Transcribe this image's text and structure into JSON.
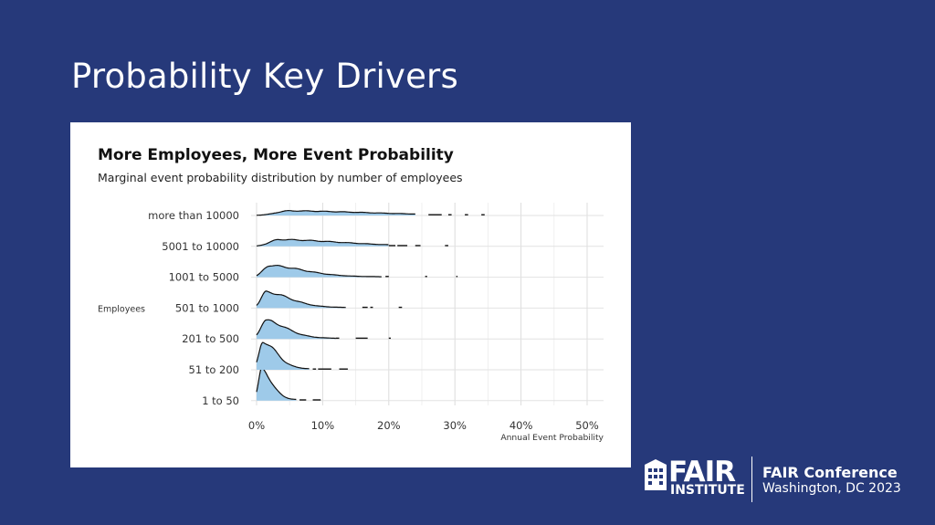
{
  "slide": {
    "title": "Probability Key Drivers"
  },
  "logo": {
    "brand": "FAIR",
    "sub": "INSTITUTE",
    "conference_name": "FAIR Conference",
    "conference_location": "Washington, DC 2023"
  },
  "chart_data": {
    "type": "ridgeline",
    "title": "More Employees, More Event Probability",
    "subtitle": "Marginal event probability distribution by number of employees",
    "ylabel": "Employees",
    "xlabel": "Annual Event Probability",
    "xlim": [
      0,
      0.5
    ],
    "xticks": [
      0,
      0.1,
      0.2,
      0.3,
      0.4,
      0.5
    ],
    "xtick_labels": [
      "0%",
      "10%",
      "20%",
      "30%",
      "40%",
      "50%"
    ],
    "grid": true,
    "fill_color": "#9ecae9",
    "line_color": "#111111",
    "series": [
      {
        "name": "1 to 50",
        "peak": 0.008,
        "spread_left": 0.005,
        "spread_right": 0.015,
        "rel_height": 1.0,
        "tail_end": 0.06,
        "ticks": [
          [
            0.065,
            0.075
          ],
          [
            0.085,
            0.097
          ]
        ]
      },
      {
        "name": "51 to 200",
        "peak": 0.01,
        "spread_left": 0.006,
        "spread_right": 0.02,
        "rel_height": 0.92,
        "tail_end": 0.08,
        "ticks": [
          [
            0.085,
            0.09
          ],
          [
            0.093,
            0.113
          ],
          [
            0.125,
            0.138
          ]
        ]
      },
      {
        "name": "201 to 500",
        "peak": 0.014,
        "spread_left": 0.008,
        "spread_right": 0.03,
        "rel_height": 0.6,
        "tail_end": 0.12,
        "ticks": [
          [
            0.12,
            0.125
          ],
          [
            0.15,
            0.168
          ],
          [
            0.2,
            0.203
          ]
        ]
      },
      {
        "name": "501 to 1000",
        "peak": 0.015,
        "spread_left": 0.008,
        "spread_right": 0.035,
        "rel_height": 0.52,
        "tail_end": 0.135,
        "ticks": [
          [
            0.16,
            0.168
          ],
          [
            0.172,
            0.176
          ],
          [
            0.215,
            0.22
          ]
        ]
      },
      {
        "name": "1001 to 5000",
        "peak": 0.02,
        "spread_left": 0.01,
        "spread_right": 0.05,
        "rel_height": 0.38,
        "tail_end": 0.19,
        "ticks": [
          [
            0.195,
            0.2
          ],
          [
            0.255,
            0.258
          ],
          [
            0.302,
            0.304
          ]
        ]
      },
      {
        "name": "5001 to 10000",
        "peak": 0.035,
        "spread_left": 0.015,
        "spread_right": 0.09,
        "rel_height": 0.22,
        "tail_end": 0.2,
        "ticks": [
          [
            0.2,
            0.21
          ],
          [
            0.213,
            0.228
          ],
          [
            0.24,
            0.248
          ],
          [
            0.285,
            0.29
          ]
        ]
      },
      {
        "name": "more than 10000",
        "peak": 0.05,
        "spread_left": 0.02,
        "spread_right": 0.12,
        "rel_height": 0.15,
        "tail_end": 0.24,
        "ticks": [
          [
            0.26,
            0.28
          ],
          [
            0.29,
            0.295
          ],
          [
            0.315,
            0.32
          ],
          [
            0.34,
            0.345
          ]
        ]
      }
    ]
  }
}
